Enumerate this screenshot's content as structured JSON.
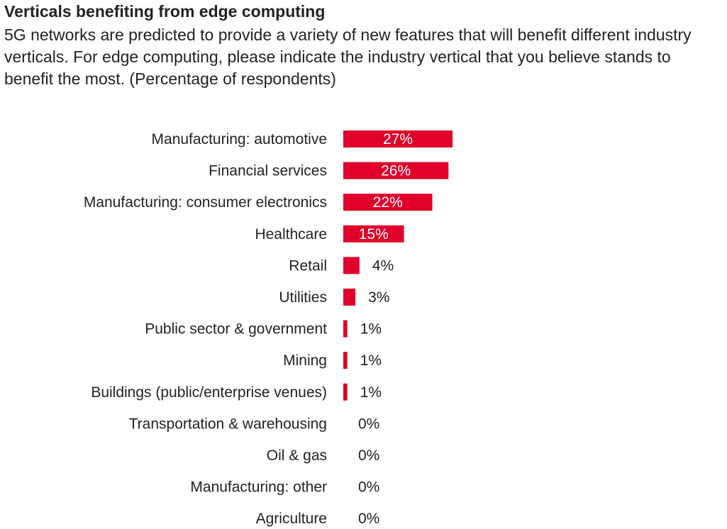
{
  "title": "Verticals benefiting from edge computing",
  "subtitle": "5G networks are predicted to provide a variety of new features that will benefit different industry verticals. For edge computing, please indicate the industry vertical that you believe stands to benefit the most. (Percentage of respondents)",
  "colors": {
    "bar": "#e0002a",
    "label_inside": "#ffffff",
    "label_outside": "#222222"
  },
  "chart_data": {
    "type": "bar",
    "orientation": "horizontal",
    "unit": "%",
    "categories": [
      "Manufacturing: automotive",
      "Financial services",
      "Manufacturing: consumer electronics",
      "Healthcare",
      "Retail",
      "Utilities",
      "Public sector & government",
      "Mining",
      "Buildings (public/enterprise venues)",
      "Transportation & warehousing",
      "Oil & gas",
      "Manufacturing: other",
      "Agriculture"
    ],
    "values": [
      27,
      26,
      22,
      15,
      4,
      3,
      1,
      1,
      1,
      0,
      0,
      0,
      0
    ],
    "labels": [
      "27%",
      "26%",
      "22%",
      "15%",
      "4%",
      "3%",
      "1%",
      "1%",
      "1%",
      "0%",
      "0%",
      "0%",
      "0%"
    ],
    "xlim": [
      0,
      27
    ],
    "grid": false,
    "legend": "none"
  }
}
